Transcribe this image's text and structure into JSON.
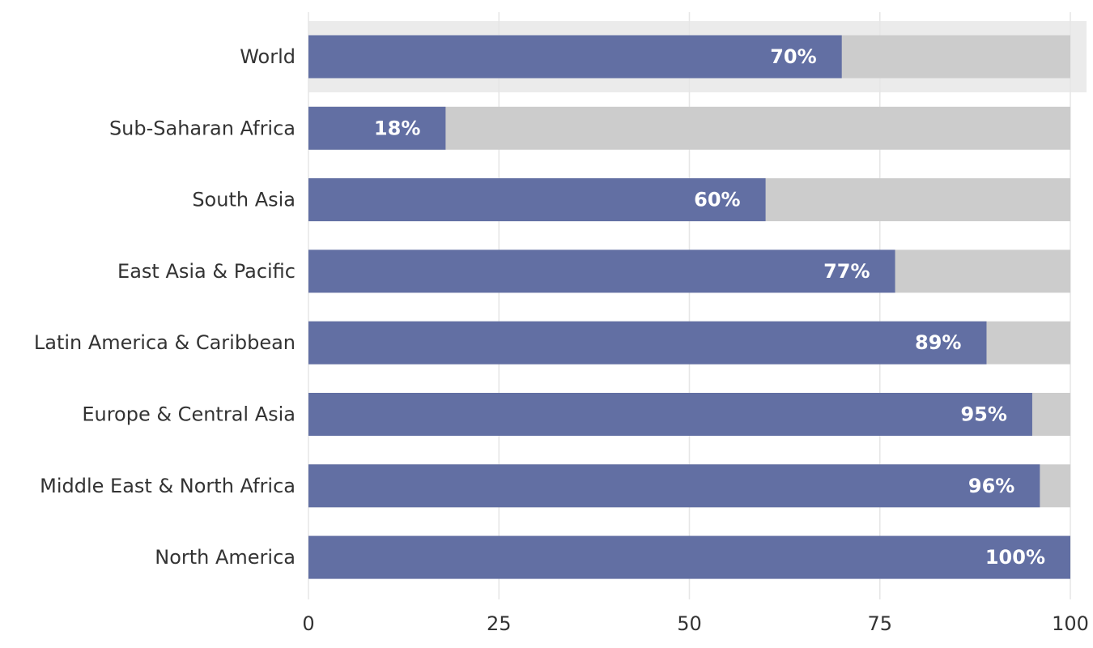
{
  "chart_data": {
    "type": "bar",
    "orientation": "horizontal",
    "stacked_background": true,
    "categories": [
      "World",
      "Sub-Saharan Africa",
      "South Asia",
      "East Asia & Pacific",
      "Latin America & Caribbean",
      "Europe & Central Asia",
      "Middle East & North Africa",
      "North America"
    ],
    "values": [
      70,
      18,
      60,
      77,
      89,
      95,
      96,
      100
    ],
    "data_labels": [
      "70%",
      "18%",
      "60%",
      "77%",
      "89%",
      "95%",
      "96%",
      "100%"
    ],
    "xlim": [
      0,
      100
    ],
    "x_ticks": [
      0,
      25,
      50,
      75,
      100
    ],
    "x_tick_labels": [
      "0",
      "25",
      "50",
      "75",
      "100"
    ],
    "highlighted_category": "World",
    "grid": true,
    "legend": "none",
    "title": "",
    "xlabel": "",
    "ylabel": ""
  },
  "colors": {
    "bar_fill": "#626fa3",
    "bar_remainder": "#cccccc",
    "highlight_band": "#ebebeb",
    "grid": "#e6e6e6",
    "text": "#333333",
    "data_label": "#ffffff"
  }
}
